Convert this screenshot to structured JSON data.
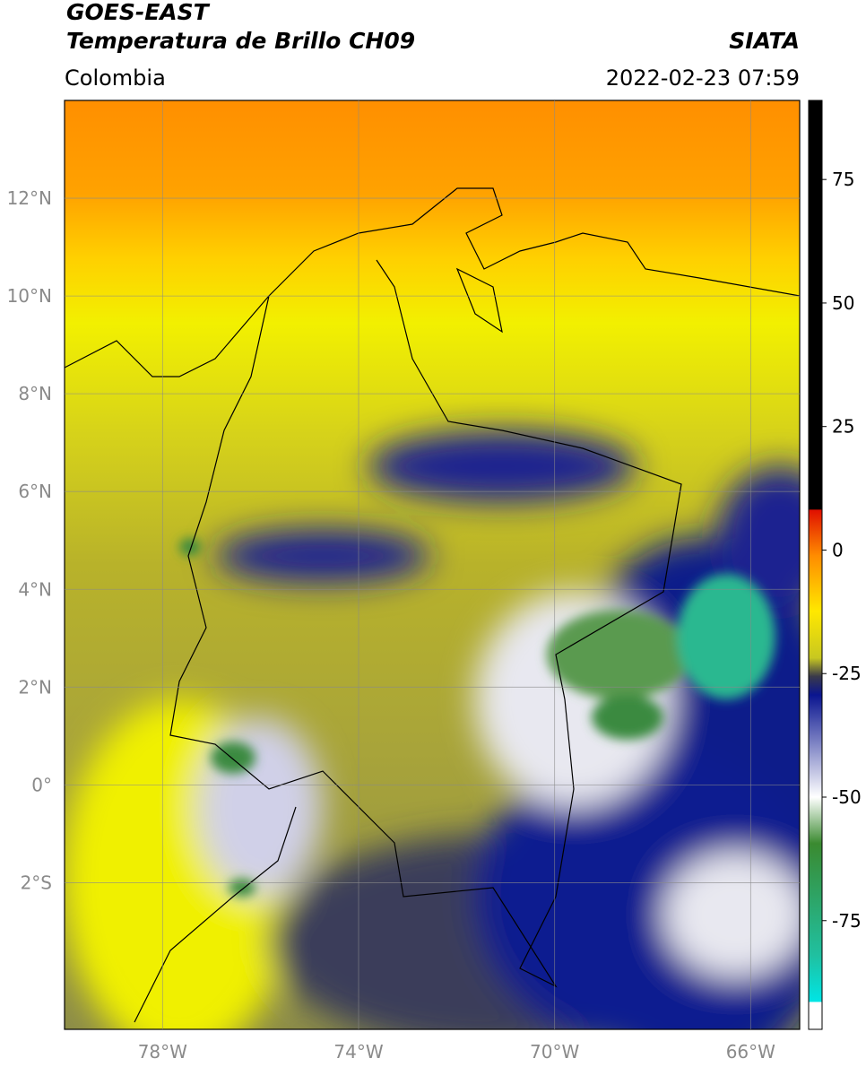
{
  "header": {
    "title": "GOES-EAST",
    "subtitle": "Temperatura de Brillo CH09",
    "region": "Colombia",
    "source": "SIATA",
    "datetime": "2022-02-23 07:59"
  },
  "map": {
    "xlim": [
      -80,
      -65
    ],
    "ylim": [
      -5,
      14
    ],
    "xticks": [
      {
        "value": -78,
        "label": "78°W"
      },
      {
        "value": -74,
        "label": "74°W"
      },
      {
        "value": -70,
        "label": "70°W"
      },
      {
        "value": -66,
        "label": "66°W"
      }
    ],
    "yticks": [
      {
        "value": 12,
        "label": "12°N"
      },
      {
        "value": 10,
        "label": "10°N"
      },
      {
        "value": 8,
        "label": "8°N"
      },
      {
        "value": 6,
        "label": "6°N"
      },
      {
        "value": 4,
        "label": "4°N"
      },
      {
        "value": 2,
        "label": "2°N"
      },
      {
        "value": 0,
        "label": "0°"
      },
      {
        "value": -2,
        "label": "2°S"
      }
    ],
    "grid": true
  },
  "colorbar": {
    "lim": [
      -97,
      91
    ],
    "ticks": [
      75,
      50,
      25,
      0,
      -25,
      -50,
      -75
    ]
  }
}
